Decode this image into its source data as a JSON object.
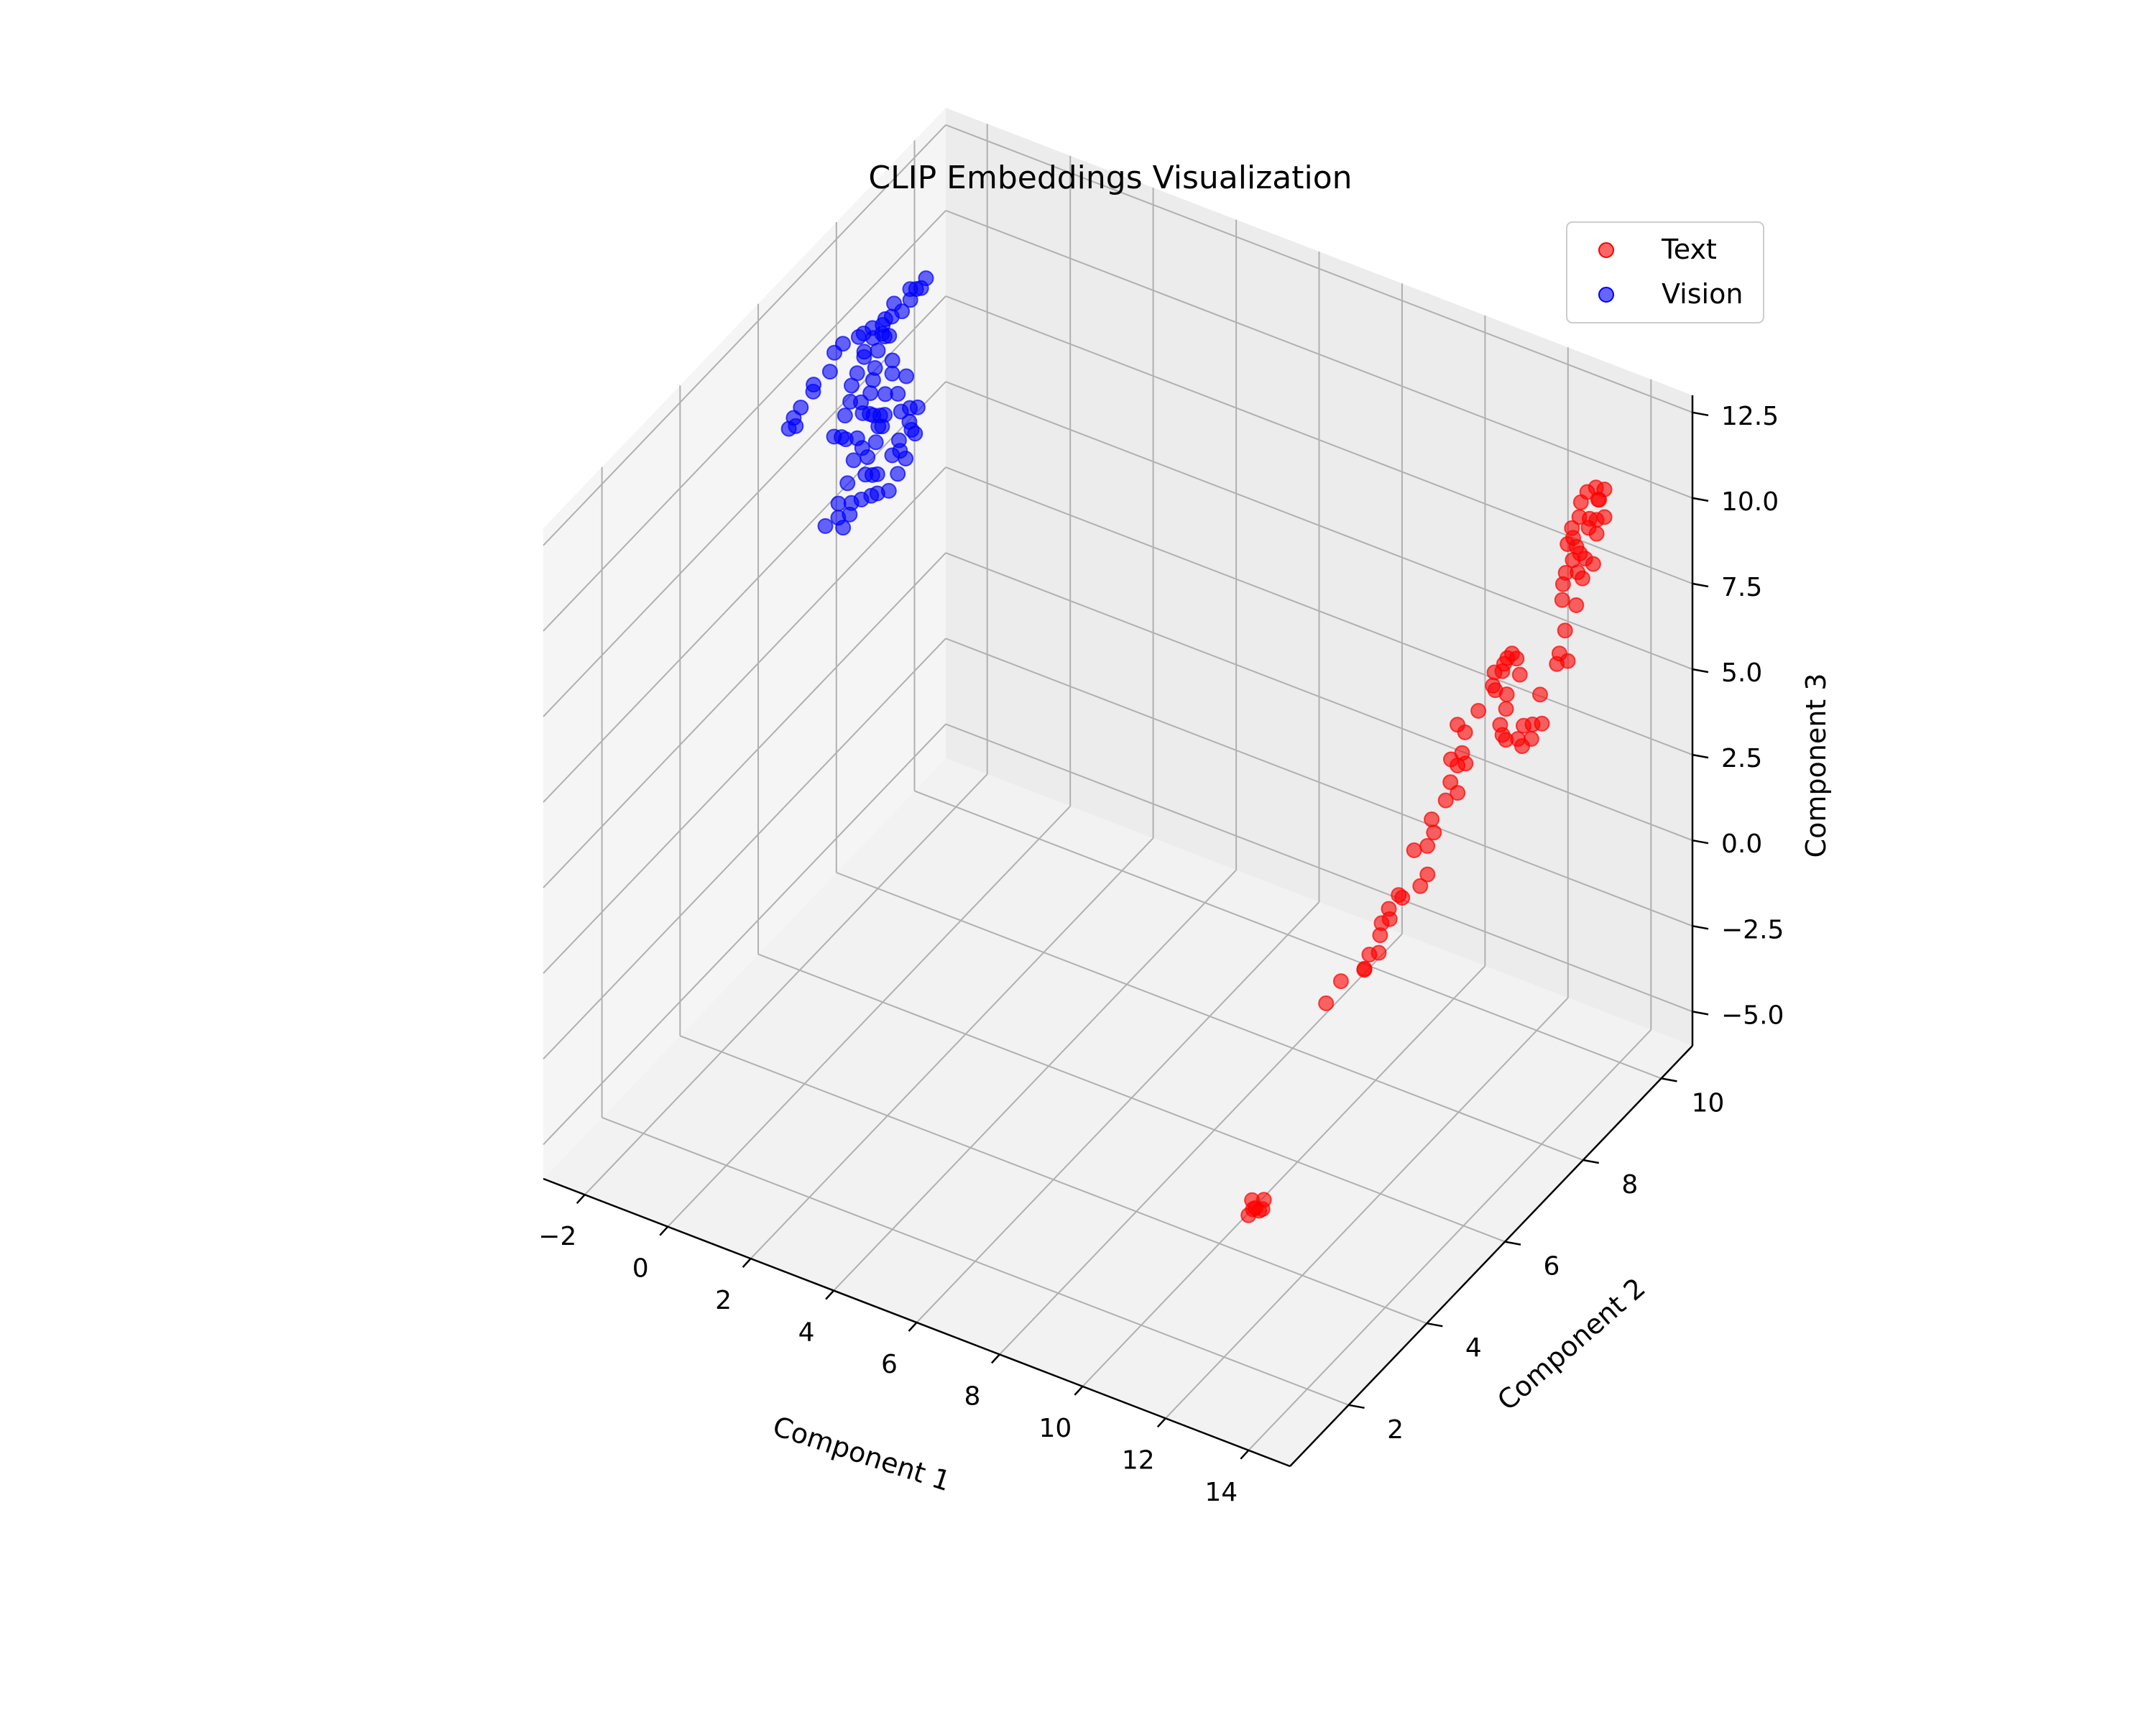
{
  "chart_data": {
    "type": "scatter",
    "projection": "3d",
    "title": "CLIP Embeddings Visualization",
    "xlabel": "Component 1",
    "ylabel": "Component 2",
    "zlabel": "Component 3",
    "xlim": [
      -3,
      15
    ],
    "ylim": [
      0.5,
      10.8
    ],
    "zlim": [
      -6,
      13
    ],
    "xticks": [
      "−2",
      "0",
      "2",
      "4",
      "6",
      "8",
      "10",
      "12",
      "14"
    ],
    "yticks": [
      "2",
      "4",
      "6",
      "8",
      "10"
    ],
    "zticks": [
      "−5.0",
      "−2.5",
      "0.0",
      "2.5",
      "5.0",
      "7.5",
      "10.0",
      "12.5"
    ],
    "grid": true,
    "legend_position": "top-right",
    "series": [
      {
        "name": "Text",
        "color": "#ff0000",
        "points": [
          [
            13.02,
            1.63,
            -0.5
          ],
          [
            13.13,
            1.6,
            -0.64
          ],
          [
            13.14,
            1.77,
            -0.87
          ],
          [
            13.01,
            1.55,
            -0.85
          ],
          [
            13.04,
            1.79,
            -0.99
          ],
          [
            13.11,
            1.56,
            -0.64
          ],
          [
            13.24,
            1.7,
            -0.47
          ],
          [
            12.95,
            3.6,
            2.87
          ],
          [
            12.96,
            3.97,
            3.08
          ],
          [
            13.07,
            4.58,
            3.18
          ],
          [
            13.04,
            4.48,
            2.84
          ],
          [
            13.01,
            4.52,
            2.81
          ],
          [
            13.09,
            4.8,
            2.98
          ],
          [
            12.99,
            4.94,
            3.28
          ],
          [
            12.97,
            5.0,
            3.55
          ],
          [
            13.06,
            5.11,
            3.58
          ],
          [
            13.04,
            5.11,
            3.87
          ],
          [
            13.06,
            5.34,
            4.01
          ],
          [
            13.1,
            5.39,
            3.89
          ],
          [
            13.13,
            5.82,
            3.73
          ],
          [
            13.18,
            5.95,
            3.94
          ],
          [
            13.0,
            5.8,
            4.74
          ],
          [
            13.12,
            6.01,
            4.67
          ],
          [
            13.12,
            6.18,
            4.86
          ],
          [
            12.99,
            6.26,
            5.09
          ],
          [
            13.0,
            6.61,
            5.23
          ],
          [
            13.04,
            6.87,
            5.16
          ],
          [
            12.97,
            6.76,
            5.57
          ],
          [
            13.01,
            6.9,
            5.91
          ],
          [
            12.98,
            7.05,
            6.08
          ],
          [
            13.12,
            6.99,
            5.91
          ],
          [
            13.04,
            6.7,
            6.34
          ],
          [
            13.07,
            7.03,
            6.75
          ],
          [
            12.98,
            6.93,
            7.05
          ],
          [
            13.08,
            7.36,
            6.99
          ],
          [
            13.06,
            7.75,
            7.25
          ],
          [
            12.97,
            7.89,
            7.43
          ],
          [
            12.95,
            8.24,
            7.42
          ],
          [
            12.96,
            8.1,
            7.21
          ],
          [
            13.04,
            8.06,
            7.51
          ],
          [
            13.07,
            8.23,
            7.62
          ],
          [
            13.05,
            8.37,
            7.3
          ],
          [
            13.09,
            8.41,
            6.8
          ],
          [
            13.02,
            8.15,
            6.5
          ],
          [
            13.05,
            8.1,
            6.15
          ],
          [
            13.03,
            7.97,
            5.83
          ],
          [
            13.01,
            8.05,
            5.43
          ],
          [
            12.98,
            8.17,
            5.13
          ],
          [
            13.09,
            8.36,
            4.98
          ],
          [
            13.17,
            8.42,
            5.33
          ],
          [
            13.16,
            8.66,
            5.08
          ],
          [
            13.06,
            8.5,
            4.59
          ],
          [
            13.17,
            8.62,
            4.71
          ],
          [
            13.16,
            8.9,
            4.82
          ],
          [
            12.93,
            7.95,
            6.82
          ],
          [
            13.08,
            8.94,
            5.58
          ],
          [
            13.18,
            9.26,
            6.14
          ],
          [
            13.13,
            9.38,
            6.28
          ],
          [
            13.19,
            9.53,
            5.91
          ],
          [
            13.05,
            9.61,
            6.64
          ],
          [
            13.15,
            9.79,
            7.21
          ],
          [
            13.01,
            9.58,
            7.55
          ],
          [
            13.13,
            9.97,
            7.77
          ],
          [
            13.07,
            9.91,
            7.99
          ],
          [
            13.22,
            10.15,
            8.02
          ],
          [
            13.11,
            10.06,
            8.23
          ],
          [
            13.07,
            9.97,
            8.47
          ],
          [
            13.17,
            10.29,
            8.71
          ],
          [
            13.09,
            10.17,
            8.99
          ],
          [
            13.12,
            10.34,
            9.03
          ],
          [
            13.2,
            10.46,
            9.01
          ],
          [
            13.03,
            10.26,
            9.12
          ],
          [
            13.11,
            10.42,
            9.52
          ],
          [
            13.15,
            10.35,
            9.63
          ],
          [
            13.16,
            10.5,
            9.75
          ],
          [
            13.06,
            10.39,
            9.89
          ],
          [
            13.01,
            10.22,
            9.94
          ],
          [
            12.98,
            10.09,
            9.78
          ],
          [
            12.97,
            10.06,
            9.38
          ],
          [
            12.98,
            9.86,
            9.3
          ],
          [
            12.96,
            9.77,
            8.93
          ],
          [
            13.01,
            9.86,
            9.03
          ],
          [
            13.05,
            9.9,
            8.74
          ],
          [
            12.99,
            9.87,
            8.36
          ],
          [
            13.02,
            9.66,
            8.25
          ],
          [
            13.0,
            9.61,
            7.97
          ]
        ]
      },
      {
        "name": "Vision",
        "color": "#0000ff",
        "points": [
          [
            -1.98,
            5.7,
            10.18
          ],
          [
            -2.05,
            5.9,
            10.23
          ],
          [
            -1.99,
            5.89,
            10.03
          ],
          [
            -2.03,
            6.06,
            10.35
          ],
          [
            -1.93,
            6.27,
            10.61
          ],
          [
            -2.07,
            6.43,
            10.56
          ],
          [
            -1.93,
            6.7,
            10.68
          ],
          [
            -2.04,
            6.93,
            10.91
          ],
          [
            -2.07,
            7.18,
            10.86
          ],
          [
            -1.99,
            7.5,
            10.71
          ],
          [
            -2.05,
            7.69,
            10.56
          ],
          [
            -1.97,
            7.83,
            10.59
          ],
          [
            -1.94,
            8.06,
            10.42
          ],
          [
            -2.01,
            8.2,
            10.39
          ],
          [
            -2.07,
            8.49,
            10.47
          ],
          [
            -1.96,
            8.79,
            10.27
          ],
          [
            -2.02,
            9.0,
            10.31
          ],
          [
            -2.04,
            9.15,
            10.15
          ],
          [
            -1.97,
            9.2,
            10.41
          ],
          [
            -2.03,
            8.86,
            10.47
          ],
          [
            -2.02,
            8.64,
            10.09
          ],
          [
            -1.96,
            8.13,
            9.99
          ],
          [
            -1.99,
            7.99,
            9.73
          ],
          [
            -2.03,
            7.96,
            9.24
          ],
          [
            -2.01,
            7.89,
            8.98
          ],
          [
            -1.98,
            7.79,
            8.73
          ],
          [
            -2.04,
            7.61,
            8.65
          ],
          [
            -1.97,
            7.58,
            8.4
          ],
          [
            -1.99,
            7.78,
            8.13
          ],
          [
            -2.02,
            7.91,
            7.92
          ],
          [
            -1.95,
            7.96,
            7.57
          ],
          [
            -2.03,
            8.14,
            7.32
          ],
          [
            -2.01,
            7.96,
            7.08
          ],
          [
            -2.05,
            7.79,
            6.83
          ],
          [
            -1.96,
            7.64,
            6.54
          ],
          [
            -1.98,
            7.84,
            6.28
          ],
          [
            -2.04,
            8.03,
            6.05
          ],
          [
            -2.02,
            8.39,
            6.18
          ],
          [
            -1.97,
            8.51,
            6.5
          ],
          [
            -2.03,
            8.84,
            6.62
          ],
          [
            -1.95,
            8.9,
            6.24
          ],
          [
            -2.04,
            8.61,
            6.04
          ],
          [
            -1.99,
            8.7,
            5.73
          ],
          [
            -2.01,
            8.52,
            5.49
          ],
          [
            -1.96,
            8.24,
            5.35
          ],
          [
            -2.05,
            8.04,
            5.47
          ],
          [
            -1.98,
            7.81,
            5.71
          ],
          [
            -2.02,
            7.6,
            5.83
          ],
          [
            -1.99,
            7.31,
            6.09
          ],
          [
            -2.04,
            7.03,
            5.97
          ],
          [
            -2.0,
            6.99,
            6.45
          ],
          [
            -1.97,
            7.19,
            6.82
          ],
          [
            -2.03,
            7.41,
            7.2
          ],
          [
            -2.01,
            7.61,
            7.33
          ],
          [
            -1.96,
            7.43,
            7.85
          ],
          [
            -2.02,
            7.2,
            8.07
          ],
          [
            -1.98,
            7.05,
            8.33
          ],
          [
            -2.04,
            6.92,
            8.47
          ],
          [
            -2.0,
            7.16,
            8.82
          ],
          [
            -1.95,
            7.24,
            9.15
          ],
          [
            -2.03,
            7.36,
            9.44
          ],
          [
            -1.99,
            7.46,
            9.7
          ],
          [
            -2.02,
            7.67,
            9.91
          ],
          [
            -1.97,
            7.62,
            10.15
          ],
          [
            -2.01,
            7.89,
            10.21
          ],
          [
            -1.98,
            8.09,
            10.11
          ],
          [
            -2.04,
            8.4,
            10.21
          ],
          [
            -2.0,
            8.29,
            9.8
          ],
          [
            -1.96,
            8.33,
            9.05
          ],
          [
            -2.03,
            8.4,
            8.55
          ],
          [
            -2.01,
            8.2,
            8.2
          ],
          [
            -1.98,
            8.04,
            7.78
          ],
          [
            -2.05,
            8.23,
            7.54
          ],
          [
            -1.99,
            8.5,
            7.86
          ],
          [
            -2.02,
            8.75,
            8.06
          ],
          [
            -1.97,
            8.56,
            7.28
          ],
          [
            -2.03,
            8.85,
            7.01
          ],
          [
            -2.0,
            9.02,
            6.84
          ],
          [
            -1.96,
            8.82,
            6.44
          ],
          [
            -2.02,
            7.3,
            5.75
          ],
          [
            -1.99,
            7.1,
            5.62
          ],
          [
            -2.04,
            6.7,
            6.12
          ]
        ]
      }
    ]
  }
}
